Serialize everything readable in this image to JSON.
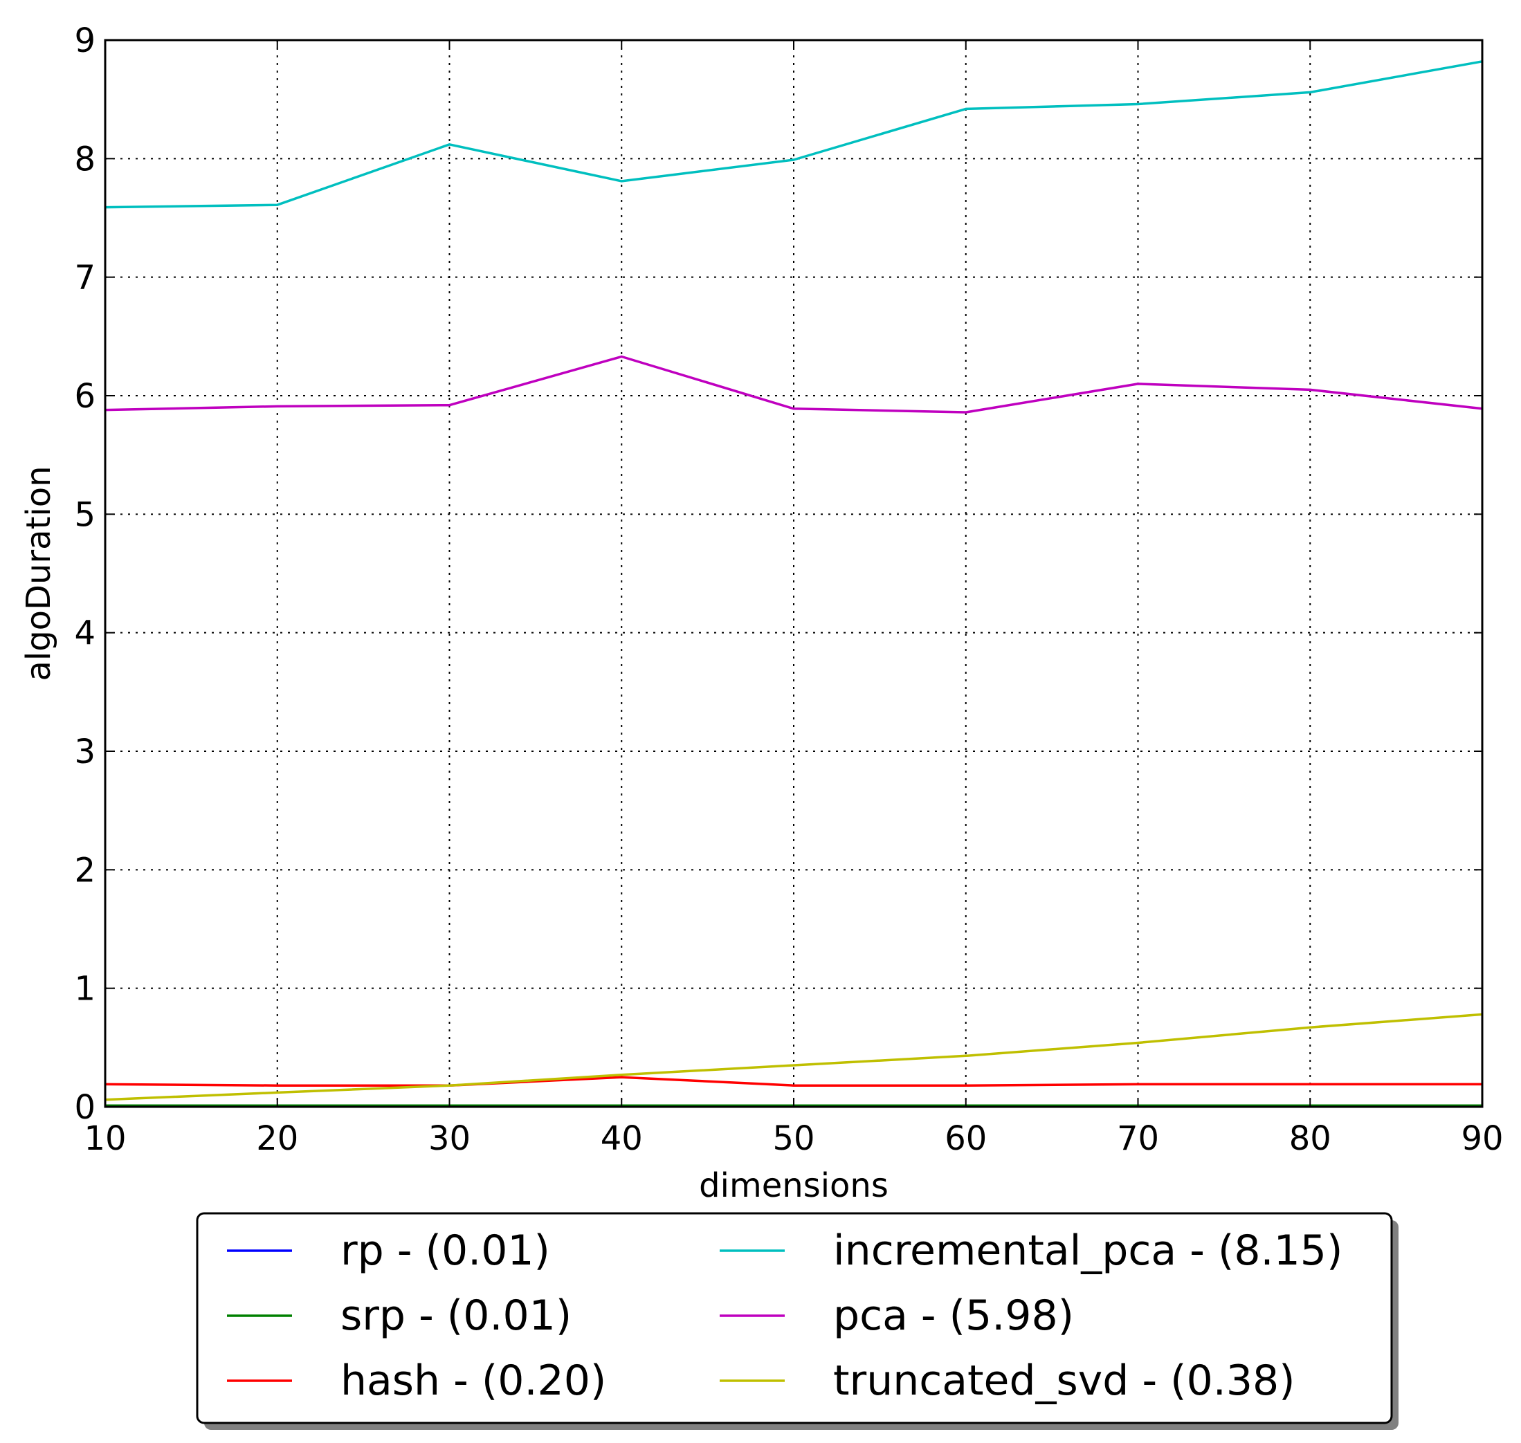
{
  "chart_data": {
    "type": "line",
    "title": "",
    "xlabel": "dimensions",
    "ylabel": "algoDuration",
    "xlim": [
      10,
      90
    ],
    "ylim": [
      0,
      9
    ],
    "xticks": [
      "10",
      "20",
      "30",
      "40",
      "50",
      "60",
      "70",
      "80",
      "90"
    ],
    "yticks": [
      "0",
      "1",
      "2",
      "3",
      "4",
      "5",
      "6",
      "7",
      "8",
      "9"
    ],
    "grid": true,
    "legend_position": "bottom-center",
    "x": [
      10,
      20,
      30,
      40,
      50,
      60,
      70,
      80,
      90
    ],
    "series": [
      {
        "name": "rp - (0.01)",
        "color": "#0000ff",
        "values": [
          0.01,
          0.01,
          0.01,
          0.01,
          0.01,
          0.01,
          0.01,
          0.01,
          0.01
        ]
      },
      {
        "name": "srp - (0.01)",
        "color": "#008000",
        "values": [
          0.01,
          0.01,
          0.01,
          0.01,
          0.01,
          0.01,
          0.01,
          0.01,
          0.01
        ]
      },
      {
        "name": "hash - (0.20)",
        "color": "#ff0000",
        "values": [
          0.19,
          0.18,
          0.18,
          0.25,
          0.18,
          0.18,
          0.19,
          0.19,
          0.19
        ]
      },
      {
        "name": "incremental_pca - (8.15)",
        "color": "#00bfbf",
        "values": [
          7.59,
          7.61,
          8.12,
          7.81,
          7.99,
          8.42,
          8.46,
          8.56,
          8.82
        ]
      },
      {
        "name": "pca - (5.98)",
        "color": "#bf00bf",
        "values": [
          5.88,
          5.91,
          5.92,
          6.33,
          5.89,
          5.86,
          6.1,
          6.05,
          5.89
        ]
      },
      {
        "name": "truncated_svd - (0.38)",
        "color": "#bfbf00",
        "values": [
          0.06,
          0.12,
          0.18,
          0.27,
          0.35,
          0.43,
          0.54,
          0.67,
          0.78
        ]
      }
    ]
  }
}
